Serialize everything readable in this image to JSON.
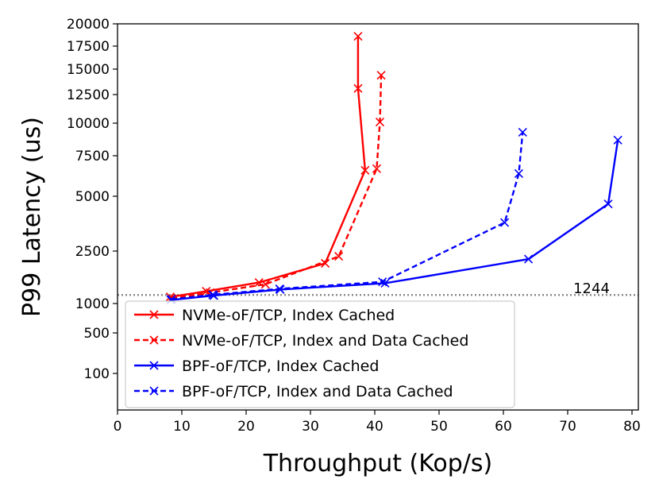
{
  "chart_data": {
    "type": "line",
    "xlabel": "Throughput (Kop/s)",
    "ylabel": "P99 Latency (us)",
    "xlim": [
      0,
      82
    ],
    "ylim": [
      0,
      20000
    ],
    "y_scale": "nonlinear (custom ticks)",
    "x_ticks": [
      0,
      10,
      20,
      30,
      40,
      50,
      60,
      70,
      80
    ],
    "y_ticks": [
      100,
      500,
      1000,
      2500,
      5000,
      7500,
      10000,
      12500,
      15000,
      17500,
      20000
    ],
    "reference_line": {
      "y": 1244,
      "label": "1244",
      "style": "dotted",
      "color": "#808080"
    },
    "legend_location": "lower-left",
    "grid": false,
    "series": [
      {
        "name": "NVMe-oF/TCP, Index Cached",
        "color": "#ff0000",
        "dash": "solid",
        "marker": "x",
        "x": [
          8.2,
          13.8,
          22.0,
          32.3,
          38.5,
          37.4,
          37.4
        ],
        "y": [
          1190,
          1350,
          1600,
          2150,
          6600,
          13100,
          18600
        ]
      },
      {
        "name": "NVMe-oF/TCP, Index and Data Cached",
        "color": "#ff0000",
        "dash": "dashed",
        "marker": "x",
        "x": [
          8.4,
          14.4,
          23.0,
          34.4,
          40.3,
          40.8,
          41.0
        ],
        "y": [
          1150,
          1310,
          1550,
          2350,
          6700,
          10100,
          14400
        ]
      },
      {
        "name": "BPF-oF/TCP, Index Cached",
        "color": "#0000ff",
        "dash": "solid",
        "marker": "x",
        "x": [
          8.3,
          15.0,
          25.3,
          41.6,
          63.9,
          76.3,
          77.8
        ],
        "y": [
          1100,
          1230,
          1400,
          1580,
          2270,
          4650,
          8700
        ]
      },
      {
        "name": "BPF-oF/TCP, Index and Data Cached",
        "color": "#0000ff",
        "dash": "dashed",
        "marker": "x",
        "x": [
          8.4,
          14.8,
          25.2,
          41.2,
          60.2,
          62.4,
          63.0
        ],
        "y": [
          1120,
          1250,
          1420,
          1620,
          3800,
          6400,
          9300
        ]
      }
    ]
  }
}
